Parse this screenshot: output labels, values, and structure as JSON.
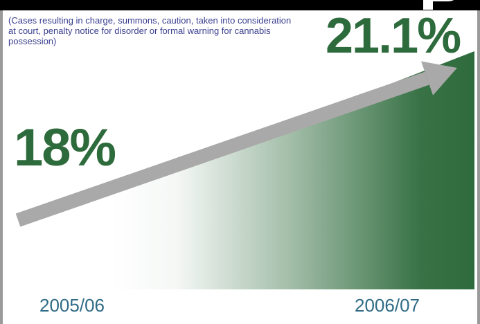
{
  "chart_data": {
    "type": "line",
    "title": "",
    "subtitle": "(Cases resulting in charge, summons, caution, taken into consideration at court, penalty notice for disorder or formal warning for cannabis possession)",
    "x": [
      "2005/06",
      "2006/07"
    ],
    "series": [
      {
        "values": [
          18,
          21.1
        ],
        "labels": [
          "18%",
          "21.1%"
        ]
      }
    ],
    "unit": "%",
    "grid": false,
    "colors": {
      "value_text": "#2e6b3c",
      "gradient": "#2e6b3c",
      "arrow": "#a9a9a9",
      "period_text": "#2f6b86",
      "subtitle_text": "#3a3f8f"
    }
  }
}
